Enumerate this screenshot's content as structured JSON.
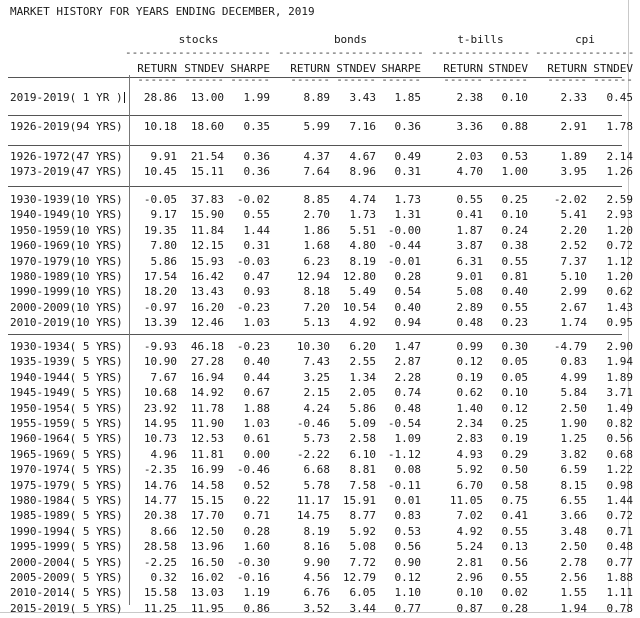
{
  "title": "MARKET HISTORY FOR YEARS ENDING DECEMBER, 2019",
  "groups": [
    "stocks",
    "bonds",
    "t-bills",
    "cpi"
  ],
  "columns": [
    "RETURN",
    "STNDEV",
    "SHARPE",
    "RETURN",
    "STNDEV",
    "SHARPE",
    "RETURN",
    "STNDEV",
    "RETURN",
    "STNDEV"
  ],
  "sections": [
    {
      "rows": [
        {
          "label": "2019-2019( 1 YR )",
          "values": [
            "28.86",
            "13.00",
            "1.99",
            "8.89",
            "3.43",
            "1.85",
            "2.38",
            "0.10",
            "2.33",
            "0.45"
          ]
        }
      ]
    },
    {
      "rows": [
        {
          "label": "1926-2019(94 YRS)",
          "values": [
            "10.18",
            "18.60",
            "0.35",
            "5.99",
            "7.16",
            "0.36",
            "3.36",
            "0.88",
            "2.91",
            "1.78"
          ]
        }
      ]
    },
    {
      "rows": [
        {
          "label": "1926-1972(47 YRS)",
          "values": [
            "9.91",
            "21.54",
            "0.36",
            "4.37",
            "4.67",
            "0.49",
            "2.03",
            "0.53",
            "1.89",
            "2.14"
          ]
        },
        {
          "label": "1973-2019(47 YRS)",
          "values": [
            "10.45",
            "15.11",
            "0.36",
            "7.64",
            "8.96",
            "0.31",
            "4.70",
            "1.00",
            "3.95",
            "1.26"
          ]
        }
      ]
    },
    {
      "rows": [
        {
          "label": "1930-1939(10 YRS)",
          "values": [
            "-0.05",
            "37.83",
            "-0.02",
            "8.85",
            "4.74",
            "1.73",
            "0.55",
            "0.25",
            "-2.02",
            "2.59"
          ]
        },
        {
          "label": "1940-1949(10 YRS)",
          "values": [
            "9.17",
            "15.90",
            "0.55",
            "2.70",
            "1.73",
            "1.31",
            "0.41",
            "0.10",
            "5.41",
            "2.93"
          ]
        },
        {
          "label": "1950-1959(10 YRS)",
          "values": [
            "19.35",
            "11.84",
            "1.44",
            "1.86",
            "5.51",
            "-0.00",
            "1.87",
            "0.24",
            "2.20",
            "1.20"
          ]
        },
        {
          "label": "1960-1969(10 YRS)",
          "values": [
            "7.80",
            "12.15",
            "0.31",
            "1.68",
            "4.80",
            "-0.44",
            "3.87",
            "0.38",
            "2.52",
            "0.72"
          ]
        },
        {
          "label": "1970-1979(10 YRS)",
          "values": [
            "5.86",
            "15.93",
            "-0.03",
            "6.23",
            "8.19",
            "-0.01",
            "6.31",
            "0.55",
            "7.37",
            "1.12"
          ]
        },
        {
          "label": "1980-1989(10 YRS)",
          "values": [
            "17.54",
            "16.42",
            "0.47",
            "12.94",
            "12.80",
            "0.28",
            "9.01",
            "0.81",
            "5.10",
            "1.20"
          ]
        },
        {
          "label": "1990-1999(10 YRS)",
          "values": [
            "18.20",
            "13.43",
            "0.93",
            "8.18",
            "5.49",
            "0.54",
            "5.08",
            "0.40",
            "2.99",
            "0.62"
          ]
        },
        {
          "label": "2000-2009(10 YRS)",
          "values": [
            "-0.97",
            "16.20",
            "-0.23",
            "7.20",
            "10.54",
            "0.40",
            "2.89",
            "0.55",
            "2.67",
            "1.43"
          ]
        },
        {
          "label": "2010-2019(10 YRS)",
          "values": [
            "13.39",
            "12.46",
            "1.03",
            "5.13",
            "4.92",
            "0.94",
            "0.48",
            "0.23",
            "1.74",
            "0.95"
          ]
        }
      ]
    },
    {
      "rows": [
        {
          "label": "1930-1934( 5 YRS)",
          "values": [
            "-9.93",
            "46.18",
            "-0.23",
            "10.30",
            "6.20",
            "1.47",
            "0.99",
            "0.30",
            "-4.79",
            "2.90"
          ]
        },
        {
          "label": "1935-1939( 5 YRS)",
          "values": [
            "10.90",
            "27.28",
            "0.40",
            "7.43",
            "2.55",
            "2.87",
            "0.12",
            "0.05",
            "0.83",
            "1.94"
          ]
        },
        {
          "label": "1940-1944( 5 YRS)",
          "values": [
            "7.67",
            "16.94",
            "0.44",
            "3.25",
            "1.34",
            "2.28",
            "0.19",
            "0.05",
            "4.99",
            "1.89"
          ]
        },
        {
          "label": "1945-1949( 5 YRS)",
          "values": [
            "10.68",
            "14.92",
            "0.67",
            "2.15",
            "2.05",
            "0.74",
            "0.62",
            "0.10",
            "5.84",
            "3.71"
          ]
        },
        {
          "label": "1950-1954( 5 YRS)",
          "values": [
            "23.92",
            "11.78",
            "1.88",
            "4.24",
            "5.86",
            "0.48",
            "1.40",
            "0.12",
            "2.50",
            "1.49"
          ]
        },
        {
          "label": "1955-1959( 5 YRS)",
          "values": [
            "14.95",
            "11.90",
            "1.03",
            "-0.46",
            "5.09",
            "-0.54",
            "2.34",
            "0.25",
            "1.90",
            "0.82"
          ]
        },
        {
          "label": "1960-1964( 5 YRS)",
          "values": [
            "10.73",
            "12.53",
            "0.61",
            "5.73",
            "2.58",
            "1.09",
            "2.83",
            "0.19",
            "1.25",
            "0.56"
          ]
        },
        {
          "label": "1965-1969( 5 YRS)",
          "values": [
            "4.96",
            "11.81",
            "0.00",
            "-2.22",
            "6.10",
            "-1.12",
            "4.93",
            "0.29",
            "3.82",
            "0.68"
          ]
        },
        {
          "label": "1970-1974( 5 YRS)",
          "values": [
            "-2.35",
            "16.99",
            "-0.46",
            "6.68",
            "8.81",
            "0.08",
            "5.92",
            "0.50",
            "6.59",
            "1.22"
          ]
        },
        {
          "label": "1975-1979( 5 YRS)",
          "values": [
            "14.76",
            "14.58",
            "0.52",
            "5.78",
            "7.58",
            "-0.11",
            "6.70",
            "0.58",
            "8.15",
            "0.98"
          ]
        },
        {
          "label": "1980-1984( 5 YRS)",
          "values": [
            "14.77",
            "15.15",
            "0.22",
            "11.17",
            "15.91",
            "0.01",
            "11.05",
            "0.75",
            "6.55",
            "1.44"
          ]
        },
        {
          "label": "1985-1989( 5 YRS)",
          "values": [
            "20.38",
            "17.70",
            "0.71",
            "14.75",
            "8.77",
            "0.83",
            "7.02",
            "0.41",
            "3.66",
            "0.72"
          ]
        },
        {
          "label": "1990-1994( 5 YRS)",
          "values": [
            "8.66",
            "12.50",
            "0.28",
            "8.19",
            "5.92",
            "0.53",
            "4.92",
            "0.55",
            "3.48",
            "0.71"
          ]
        },
        {
          "label": "1995-1999( 5 YRS)",
          "values": [
            "28.58",
            "13.96",
            "1.60",
            "8.16",
            "5.08",
            "0.56",
            "5.24",
            "0.13",
            "2.50",
            "0.48"
          ]
        },
        {
          "label": "2000-2004( 5 YRS)",
          "values": [
            "-2.25",
            "16.50",
            "-0.30",
            "9.90",
            "7.72",
            "0.90",
            "2.81",
            "0.56",
            "2.78",
            "0.77"
          ]
        },
        {
          "label": "2005-2009( 5 YRS)",
          "values": [
            "0.32",
            "16.02",
            "-0.16",
            "4.56",
            "12.79",
            "0.12",
            "2.96",
            "0.55",
            "2.56",
            "1.88"
          ]
        },
        {
          "label": "2010-2014( 5 YRS)",
          "values": [
            "15.58",
            "13.03",
            "1.19",
            "6.76",
            "6.05",
            "1.10",
            "0.10",
            "0.02",
            "1.55",
            "1.11"
          ]
        },
        {
          "label": "2015-2019( 5 YRS)",
          "values": [
            "11.25",
            "11.95",
            "0.86",
            "3.52",
            "3.44",
            "0.77",
            "0.87",
            "0.28",
            "1.94",
            "0.78"
          ]
        }
      ]
    }
  ]
}
